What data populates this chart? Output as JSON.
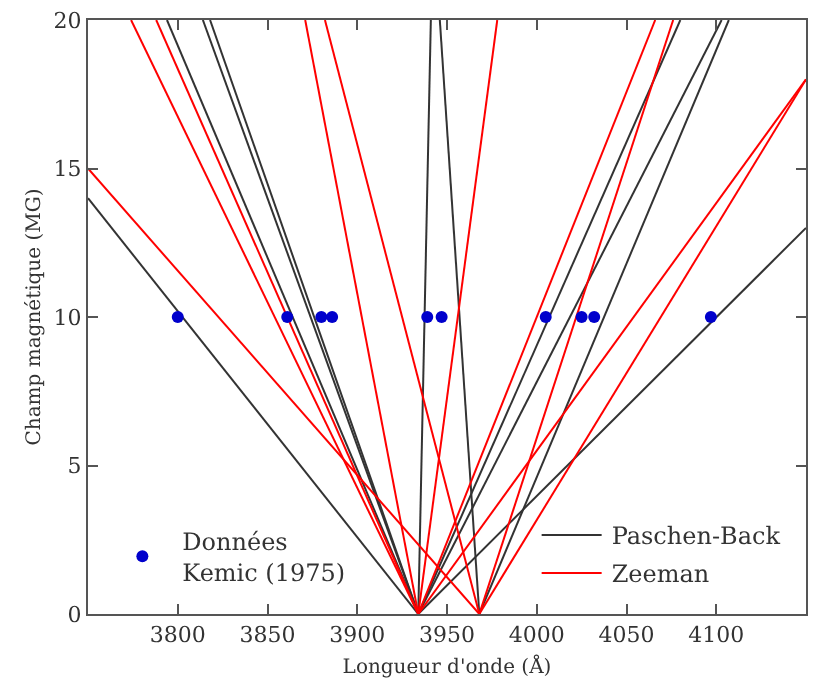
{
  "chart_data": {
    "type": "line",
    "xlabel": "Longueur d'onde (Å)",
    "ylabel": "Champ magnétique (MG)",
    "xlim": [
      3750,
      4150
    ],
    "xticks": [
      3800,
      3850,
      3900,
      3950,
      4000,
      4050,
      4100
    ],
    "ylim": [
      0,
      20
    ],
    "yticks": [
      0,
      5,
      10,
      15,
      20
    ],
    "legend": "bottom",
    "series": [
      {
        "name": "Paschen-Back",
        "color": "#333333",
        "x": [
          3934,
          3750,
          null,
          3934,
          3794,
          null,
          3934,
          3814,
          null,
          3934,
          3818,
          null,
          3934,
          3941,
          null,
          3968,
          3946,
          null,
          3934,
          4080,
          null,
          3934,
          4103,
          null,
          3968,
          4107,
          null,
          3934,
          4150
        ],
        "values": [
          0,
          14,
          null,
          0,
          20,
          null,
          0,
          20,
          null,
          0,
          20,
          null,
          0,
          20,
          null,
          0,
          20,
          null,
          0,
          20,
          null,
          0,
          20,
          null,
          0,
          20,
          null,
          0,
          13
        ]
      },
      {
        "name": "Zeeman",
        "color": "#ff0000",
        "x": [
          3968,
          3750,
          null,
          3934,
          3774,
          null,
          3934,
          3788,
          null,
          3934,
          3871,
          null,
          3968,
          3882,
          null,
          3934,
          3978,
          null,
          3934,
          4066,
          null,
          3968,
          4076,
          null,
          3934,
          4150,
          null,
          3968,
          4150
        ],
        "values": [
          0,
          15,
          null,
          0,
          20,
          null,
          0,
          20,
          null,
          0,
          20,
          null,
          0,
          20,
          null,
          0,
          20,
          null,
          0,
          20,
          null,
          0,
          20,
          null,
          0,
          18,
          null,
          0,
          18
        ]
      },
      {
        "name": "Données\nKemic (1975)",
        "type": "scatter",
        "marker": "circle",
        "color": "#0000cc",
        "x": [
          3800,
          3861,
          3880,
          3886,
          3939,
          3947,
          4005,
          4025,
          4032,
          4097
        ],
        "values": [
          10,
          10,
          10,
          10,
          10,
          10,
          10,
          10,
          10,
          10
        ]
      }
    ]
  }
}
